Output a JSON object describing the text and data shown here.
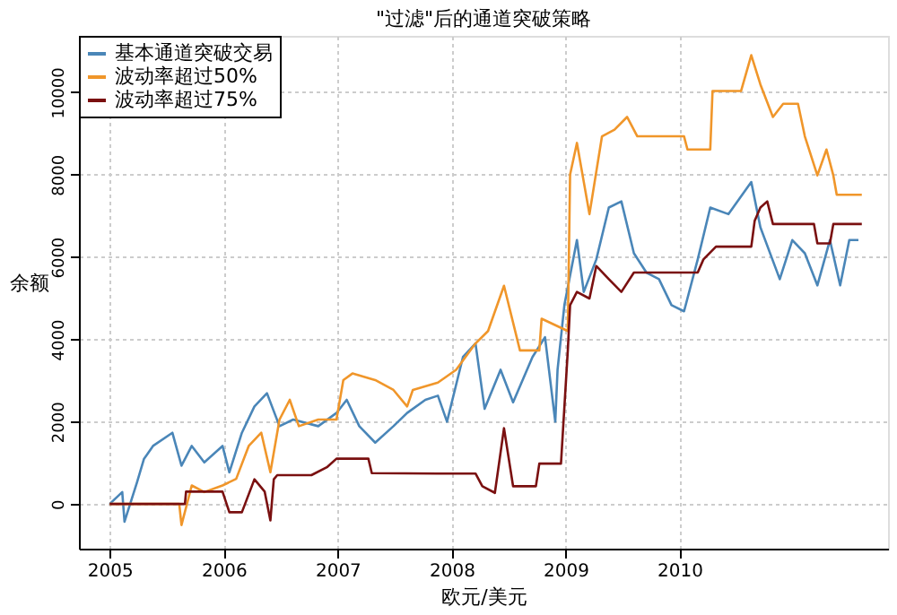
{
  "chart_data": {
    "type": "line",
    "title": "\"过滤\"后的通道突破策略",
    "xlabel": "欧元/美元",
    "ylabel": "余额",
    "xlim": [
      2004.73,
      2011.83
    ],
    "xticks": [
      2005,
      2006,
      2007,
      2008,
      2009,
      2010
    ],
    "ylim": [
      -1085,
      11370
    ],
    "yticks": [
      0,
      2000,
      4000,
      6000,
      8000,
      10000
    ],
    "grid": true,
    "legend": "top left",
    "line_style": "solid",
    "marker": "none",
    "series": [
      {
        "name": "基本通道突破交易",
        "color": "#4a86b8",
        "x": [
          2005.0,
          2005.11,
          2005.13,
          2005.24,
          2005.3,
          2005.38,
          2005.55,
          2005.63,
          2005.72,
          2005.83,
          2005.99,
          2006.05,
          2006.16,
          2006.27,
          2006.38,
          2006.49,
          2006.61,
          2006.83,
          2006.99,
          2007.08,
          2007.19,
          2007.33,
          2007.49,
          2007.61,
          2007.77,
          2007.88,
          2007.96,
          2008.1,
          2008.21,
          2008.29,
          2008.43,
          2008.54,
          2008.71,
          2008.82,
          2008.91,
          2008.93,
          2008.99,
          2009.1,
          2009.16,
          2009.27,
          2009.38,
          2009.49,
          2009.6,
          2009.71,
          2009.82,
          2009.93,
          2010.04,
          2010.16,
          2010.27,
          2010.43,
          2010.63,
          2010.71,
          2010.88,
          2010.99,
          2011.1,
          2011.21,
          2011.32,
          2011.41,
          2011.49,
          2011.57
        ],
        "values": [
          0,
          290,
          -430,
          530,
          1090,
          1410,
          1730,
          930,
          1410,
          1010,
          1410,
          770,
          1730,
          2370,
          2690,
          1890,
          2050,
          1890,
          2210,
          2530,
          1890,
          1490,
          1890,
          2210,
          2530,
          2630,
          2000,
          3570,
          3900,
          2310,
          3260,
          2470,
          3570,
          4050,
          2000,
          3260,
          4830,
          6410,
          5150,
          5940,
          7200,
          7350,
          6090,
          5620,
          5460,
          4830,
          4680,
          5940,
          7200,
          7040,
          7820,
          6720,
          5460,
          6410,
          6090,
          5310,
          6410,
          5310,
          6410,
          6410
        ]
      },
      {
        "name": "波动率超过50%",
        "color": "#f0962a",
        "x": [
          2005.0,
          2005.61,
          2005.63,
          2005.72,
          2005.83,
          2005.99,
          2006.11,
          2006.22,
          2006.33,
          2006.41,
          2006.49,
          2006.58,
          2006.66,
          2006.83,
          2006.99,
          2007.05,
          2007.13,
          2007.33,
          2007.49,
          2007.61,
          2007.66,
          2007.88,
          2008.04,
          2008.21,
          2008.32,
          2008.46,
          2008.6,
          2008.77,
          2008.79,
          2009.02,
          2009.04,
          2009.1,
          2009.21,
          2009.32,
          2009.43,
          2009.54,
          2009.63,
          2010.04,
          2010.07,
          2010.27,
          2010.29,
          2010.54,
          2010.63,
          2010.71,
          2010.82,
          2010.91,
          2011.04,
          2011.1,
          2011.21,
          2011.29,
          2011.35,
          2011.38,
          2011.6
        ],
        "values": [
          0,
          0,
          -510,
          450,
          290,
          450,
          610,
          1410,
          1730,
          770,
          2050,
          2530,
          1890,
          2050,
          2050,
          3010,
          3170,
          3010,
          2770,
          2370,
          2770,
          2950,
          3260,
          3900,
          4200,
          5300,
          3730,
          3730,
          4500,
          4200,
          8000,
          8770,
          7040,
          8930,
          9090,
          9400,
          8930,
          8930,
          8610,
          8610,
          10030,
          10030,
          10900,
          10190,
          9400,
          9720,
          9720,
          8930,
          7980,
          8610,
          7980,
          7510,
          7510
        ]
      },
      {
        "name": "波动率超过75%",
        "color": "#7a1010",
        "x": [
          2005.0,
          2005.66,
          2005.67,
          2005.99,
          2006.05,
          2006.16,
          2006.27,
          2006.36,
          2006.41,
          2006.44,
          2006.47,
          2006.77,
          2006.91,
          2006.99,
          2007.27,
          2007.3,
          2007.88,
          2008.21,
          2008.27,
          2008.38,
          2008.46,
          2008.54,
          2008.74,
          2008.77,
          2008.96,
          2009.02,
          2009.04,
          2009.1,
          2009.21,
          2009.27,
          2009.38,
          2009.49,
          2009.6,
          2010.16,
          2010.21,
          2010.32,
          2010.63,
          2010.66,
          2010.71,
          2010.77,
          2010.82,
          2011.18,
          2011.21,
          2011.32,
          2011.35,
          2011.6
        ],
        "values": [
          0,
          0,
          300,
          300,
          -200,
          -200,
          600,
          300,
          -400,
          600,
          700,
          700,
          900,
          1100,
          1100,
          750,
          740,
          740,
          430,
          270,
          1840,
          430,
          430,
          980,
          980,
          3730,
          4830,
          5150,
          4990,
          5780,
          5460,
          5150,
          5620,
          5620,
          5940,
          6250,
          6250,
          6880,
          7200,
          7350,
          6800,
          6800,
          6330,
          6330,
          6800,
          6800
        ]
      }
    ]
  }
}
